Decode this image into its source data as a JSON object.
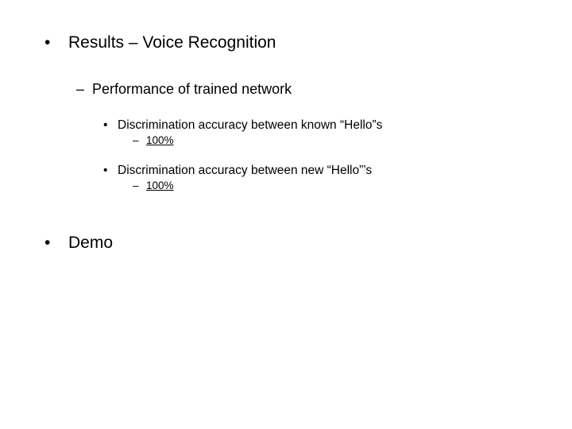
{
  "slide": {
    "items": [
      {
        "bullet": "•",
        "text": "Results – Voice Recognition"
      },
      {
        "bullet": "–",
        "text": "Performance of trained network"
      },
      {
        "bullet": "•",
        "text": "Discrimination accuracy between known “Hello”s"
      },
      {
        "bullet": "–",
        "text": "100%"
      },
      {
        "bullet": "•",
        "text": "Discrimination accuracy between new “Hello”’s"
      },
      {
        "bullet": "–",
        "text": "100%"
      },
      {
        "bullet": "•",
        "text": "Demo"
      }
    ]
  }
}
